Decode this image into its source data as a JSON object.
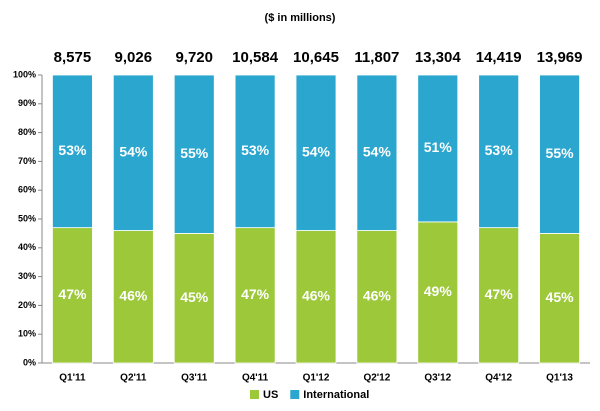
{
  "chart_data": {
    "type": "stacked_bar_100",
    "subtitle": "($ in millions)",
    "categories": [
      "Q1'11",
      "Q2'11",
      "Q3'11",
      "Q4'11",
      "Q1'12",
      "Q2'12",
      "Q3'12",
      "Q4'12",
      "Q1'13"
    ],
    "series": [
      {
        "name": "US",
        "color": "#9cc83a",
        "values": [
          47,
          46,
          45,
          47,
          46,
          46,
          49,
          47,
          45
        ],
        "value_labels": [
          "47%",
          "46%",
          "45%",
          "47%",
          "46%",
          "46%",
          "49%",
          "47%",
          "45%"
        ]
      },
      {
        "name": "International",
        "color": "#2ba6cf",
        "values": [
          53,
          54,
          55,
          53,
          54,
          54,
          51,
          53,
          55
        ],
        "value_labels": [
          "53%",
          "54%",
          "55%",
          "53%",
          "54%",
          "54%",
          "51%",
          "53%",
          "55%"
        ]
      }
    ],
    "totals": {
      "values": [
        8575,
        9026,
        9720,
        10584,
        10645,
        11807,
        13304,
        14419,
        13969
      ],
      "value_labels": [
        "8,575",
        "9,026",
        "9,720",
        "10,584",
        "10,645",
        "11,807",
        "13,304",
        "14,419",
        "13,969"
      ]
    },
    "ylim": [
      0,
      100
    ],
    "yticks": [
      {
        "value": 0,
        "label": "0%"
      },
      {
        "value": 10,
        "label": "10%"
      },
      {
        "value": 20,
        "label": "20%"
      },
      {
        "value": 30,
        "label": "30%"
      },
      {
        "value": 40,
        "label": "40%"
      },
      {
        "value": 50,
        "label": "50%"
      },
      {
        "value": 60,
        "label": "60%"
      },
      {
        "value": 70,
        "label": "70%"
      },
      {
        "value": 80,
        "label": "80%"
      },
      {
        "value": 90,
        "label": "90%"
      },
      {
        "value": 100,
        "label": "100%"
      }
    ],
    "grid": false,
    "legend": "bottom"
  }
}
